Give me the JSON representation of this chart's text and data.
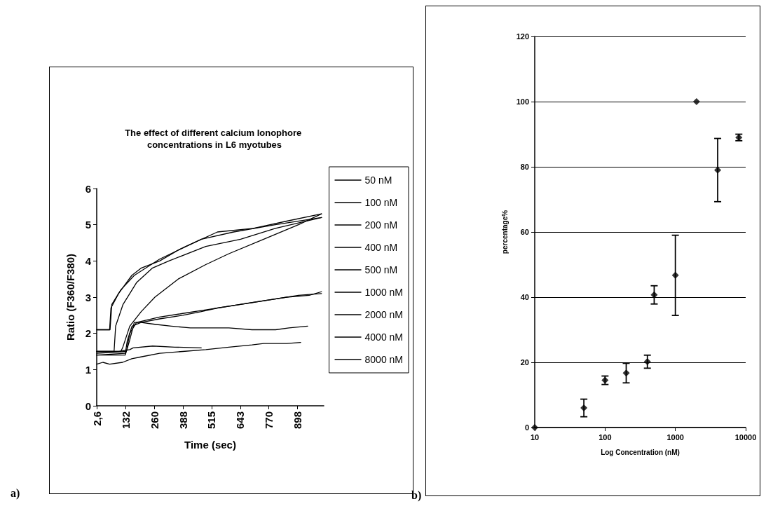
{
  "chart_data": [
    {
      "type": "line",
      "title": "The effect of different calcium Ionophore concentrations in L6 myotubes",
      "xlabel": "Time (sec)",
      "ylabel": "Ratio (F360/F380)",
      "xlim": [
        2.6,
        1015
      ],
      "xticks": [
        {
          "value": 2.6,
          "label": "2,6"
        },
        132,
        260,
        388,
        515,
        643,
        770,
        898
      ],
      "ylim": [
        0,
        6
      ],
      "yticks": [
        0,
        1,
        2,
        3,
        4,
        5,
        6
      ],
      "grid": false,
      "legend": "right",
      "marker": "none",
      "line_style": "solid",
      "annotations": [
        "a)"
      ],
      "series": [
        {
          "name": "50 nM",
          "color": "#000000",
          "x": [
            2.6,
            30,
            60,
            118,
            159,
            200,
            283,
            386,
            489,
            592,
            695,
            747,
            850,
            912
          ],
          "values": [
            1.15,
            1.2,
            1.15,
            1.2,
            1.3,
            1.35,
            1.45,
            1.5,
            1.55,
            1.62,
            1.68,
            1.72,
            1.72,
            1.75
          ]
        },
        {
          "name": "100 nM",
          "color": "#000000",
          "x": [
            2.6,
            100,
            150,
            165,
            252,
            350,
            469
          ],
          "values": [
            1.5,
            1.5,
            1.55,
            1.6,
            1.65,
            1.62,
            1.6
          ]
        },
        {
          "name": "200 nM",
          "color": "#000000",
          "x": [
            2.6,
            130,
            149,
            170,
            201,
            262,
            335,
            420,
            489,
            592,
            695,
            800,
            860,
            943
          ],
          "values": [
            1.4,
            1.4,
            1.8,
            2.3,
            2.3,
            2.25,
            2.2,
            2.15,
            2.15,
            2.15,
            2.1,
            2.1,
            2.15,
            2.2
          ]
        },
        {
          "name": "400 nM",
          "color": "#000000",
          "x": [
            2.6,
            130,
            139,
            160,
            200,
            283,
            386,
            469,
            541,
            644,
            747,
            850,
            950,
            1005
          ],
          "values": [
            1.4,
            1.45,
            1.8,
            2.2,
            2.3,
            2.4,
            2.5,
            2.6,
            2.7,
            2.8,
            2.9,
            3.0,
            3.05,
            3.15
          ]
        },
        {
          "name": "500 nM",
          "color": "#000000",
          "x": [
            2.6,
            135,
            150,
            180,
            283,
            386,
            489,
            592,
            695,
            799,
            902,
            1005
          ],
          "values": [
            1.45,
            1.5,
            2.0,
            2.3,
            2.45,
            2.55,
            2.65,
            2.75,
            2.85,
            2.95,
            3.05,
            3.1
          ]
        },
        {
          "name": "1000 nM",
          "color": "#000000",
          "x": [
            2.6,
            110,
            118,
            150,
            201,
            262,
            366,
            489,
            592,
            747,
            902,
            1005
          ],
          "values": [
            1.5,
            1.5,
            1.6,
            2.2,
            2.6,
            3.0,
            3.5,
            3.9,
            4.2,
            4.6,
            5.0,
            5.3
          ]
        },
        {
          "name": "2000 nM",
          "color": "#000000",
          "x": [
            2.6,
            80,
            87,
            120,
            180,
            250,
            324,
            489,
            644,
            799,
            1005
          ],
          "values": [
            1.5,
            1.5,
            2.2,
            2.8,
            3.4,
            3.8,
            4.0,
            4.4,
            4.6,
            4.9,
            5.2
          ]
        },
        {
          "name": "4000 nM",
          "color": "#000000",
          "x": [
            2.6,
            60,
            66,
            100,
            159,
            200,
            283,
            366,
            469,
            613,
            799,
            1005
          ],
          "values": [
            2.1,
            2.1,
            2.7,
            3.1,
            3.6,
            3.8,
            4.0,
            4.3,
            4.6,
            4.8,
            5.0,
            5.2
          ]
        },
        {
          "name": "8000 nM",
          "color": "#000000",
          "x": [
            2.6,
            62,
            70,
            110,
            170,
            283,
            400,
            541,
            700,
            850,
            1005
          ],
          "values": [
            2.1,
            2.1,
            2.8,
            3.2,
            3.6,
            4.05,
            4.4,
            4.8,
            4.9,
            5.1,
            5.3
          ]
        }
      ]
    },
    {
      "type": "scatter",
      "xlabel": "Log Concentration (nM)",
      "ylabel": "percentage%",
      "log": "x",
      "xlim": [
        10,
        10000
      ],
      "xticks": [
        10,
        100,
        1000,
        10000
      ],
      "ylim": [
        0,
        120
      ],
      "yticks": [
        0,
        20,
        40,
        60,
        80,
        100,
        120
      ],
      "grid": "y",
      "legend": false,
      "marker": "diamond",
      "color": "#000000",
      "annotations": [
        "b)"
      ],
      "x": [
        10,
        50,
        100,
        200,
        400,
        500,
        1000,
        2000,
        4000,
        8000
      ],
      "values": [
        0,
        6,
        14.5,
        16.7,
        20.2,
        40.7,
        46.7,
        100,
        79,
        89
      ],
      "errors": [
        null,
        2.7,
        1.3,
        3,
        2,
        2.8,
        12.3,
        null,
        9.7,
        1
      ]
    }
  ]
}
